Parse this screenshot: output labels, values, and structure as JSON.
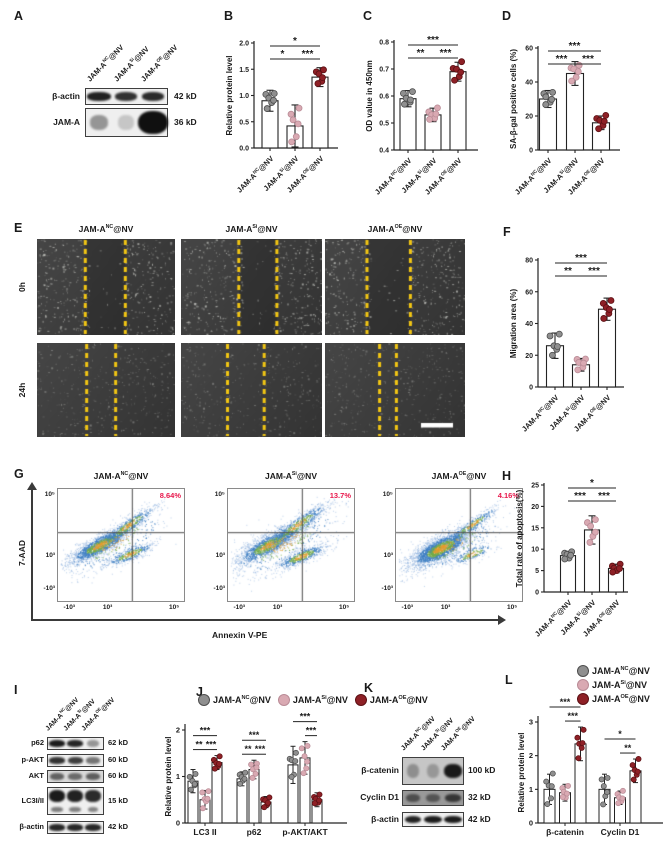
{
  "colors": {
    "nc_fill": "#8f8f8f",
    "nc_stroke": "#4d4d4d",
    "si_fill": "#d9a9b2",
    "si_stroke": "#b98b96",
    "oe_fill": "#8e2026",
    "oe_stroke": "#5c1014",
    "bar_stroke": "#232323",
    "percent_red": "#e8174b",
    "dash_yellow": "#f2c613",
    "axis_dark": "#3a3a3a"
  },
  "groups": [
    {
      "id": "nc",
      "base": "JAM-A",
      "sup": "NC",
      "suffix": "@NV"
    },
    {
      "id": "si",
      "base": "JAM-A",
      "sup": "Si",
      "suffix": "@NV"
    },
    {
      "id": "oe",
      "base": "JAM-A",
      "sup": "OE",
      "suffix": "@NV"
    }
  ],
  "panels": {
    "A": {
      "letter": "A",
      "rows": [
        {
          "label": "β-actin",
          "kd": "42 kD",
          "bands": [
            0.92,
            0.85,
            0.88
          ]
        },
        {
          "label": "JAM-A",
          "kd": "36 kD",
          "bands": [
            0.4,
            0.18,
            1.0
          ],
          "blob": true
        }
      ]
    },
    "B": {
      "letter": "B",
      "chart_data": {
        "type": "bar",
        "ylabel": "Relative protein level",
        "ylim": [
          0,
          2
        ],
        "yticks": [
          [
            0,
            "0.0"
          ],
          [
            0.5,
            "0.5"
          ],
          [
            1,
            "1.0"
          ],
          [
            1.5,
            "1.5"
          ],
          [
            2,
            "2.0"
          ]
        ],
        "values": [
          0.9,
          0.42,
          1.35
        ],
        "errors": [
          0.2,
          0.4,
          0.18
        ],
        "sig": [
          {
            "a": 0,
            "b": 1,
            "stars": "*",
            "level": 1
          },
          {
            "a": 1,
            "b": 2,
            "stars": "***",
            "level": 1
          },
          {
            "a": 0,
            "b": 2,
            "stars": "*",
            "level": 0
          }
        ]
      }
    },
    "C": {
      "letter": "C",
      "chart_data": {
        "type": "bar",
        "ylabel": "OD value in 450nm",
        "ylim": [
          0.4,
          0.8
        ],
        "yticks": [
          [
            0.4,
            "0.4"
          ],
          [
            0.5,
            "0.5"
          ],
          [
            0.6,
            "0.6"
          ],
          [
            0.7,
            "0.7"
          ],
          [
            0.8,
            "0.8"
          ]
        ],
        "values": [
          0.59,
          0.53,
          0.69
        ],
        "errors": [
          0.03,
          0.025,
          0.035
        ],
        "sig": [
          {
            "a": 0,
            "b": 1,
            "stars": "**",
            "level": 1
          },
          {
            "a": 1,
            "b": 2,
            "stars": "***",
            "level": 1
          },
          {
            "a": 0,
            "b": 2,
            "stars": "***",
            "level": 0
          }
        ]
      }
    },
    "D": {
      "letter": "D",
      "chart_data": {
        "type": "bar",
        "ylabel": "SA-β-gal positive cells (%)",
        "ylim": [
          0,
          60
        ],
        "yticks": [
          [
            0,
            "0"
          ],
          [
            20,
            "20"
          ],
          [
            40,
            "40"
          ],
          [
            60,
            "60"
          ]
        ],
        "values": [
          30,
          45,
          16
        ],
        "errors": [
          5,
          7,
          4
        ],
        "sig": [
          {
            "a": 0,
            "b": 1,
            "stars": "***",
            "level": 1
          },
          {
            "a": 1,
            "b": 2,
            "stars": "***",
            "level": 1
          },
          {
            "a": 0,
            "b": 2,
            "stars": "***",
            "level": 0
          }
        ]
      }
    },
    "E": {
      "letter": "E",
      "row_labels": [
        "0h",
        "24h"
      ],
      "images": [
        {
          "row": "0h",
          "gap": [
            0.35,
            0.64
          ]
        },
        {
          "row": "0h",
          "gap": [
            0.41,
            0.68
          ]
        },
        {
          "row": "0h",
          "gap": [
            0.3,
            0.61
          ]
        },
        {
          "row": "24h",
          "gap": [
            0.36,
            0.57
          ]
        },
        {
          "row": "24h",
          "gap": [
            0.33,
            0.59
          ]
        },
        {
          "row": "24h",
          "gap": [
            0.39,
            0.51
          ],
          "scalebar": true
        }
      ]
    },
    "F": {
      "letter": "F",
      "chart_data": {
        "type": "bar",
        "ylabel": "Migration area (%)",
        "ylim": [
          0,
          80
        ],
        "yticks": [
          [
            0,
            "0"
          ],
          [
            20,
            "20"
          ],
          [
            40,
            "40"
          ],
          [
            60,
            "60"
          ],
          [
            80,
            "80"
          ]
        ],
        "values": [
          26,
          14,
          49
        ],
        "errors": [
          8,
          4,
          7
        ],
        "sig": [
          {
            "a": 0,
            "b": 1,
            "stars": "**",
            "level": 1
          },
          {
            "a": 1,
            "b": 2,
            "stars": "***",
            "level": 1
          },
          {
            "a": 0,
            "b": 2,
            "stars": "***",
            "level": 0
          }
        ]
      }
    },
    "G": {
      "letter": "G",
      "ylabel": "7-AAD",
      "xlabel": "Annexin V-PE",
      "yticks": [
        "10⁵",
        "10³",
        "-10³"
      ],
      "xticks": [
        "-10³",
        "10³",
        "10⁵"
      ],
      "plots": [
        {
          "percent": "8.64%"
        },
        {
          "percent": "13.7%"
        },
        {
          "percent": "4.16%"
        }
      ]
    },
    "H": {
      "letter": "H",
      "chart_data": {
        "type": "bar",
        "ylabel": "Total rate of apoptosis(%)",
        "ylim": [
          0,
          25
        ],
        "yticks": [
          [
            0,
            "0"
          ],
          [
            5,
            "5"
          ],
          [
            10,
            "10"
          ],
          [
            15,
            "15"
          ],
          [
            20,
            "20"
          ],
          [
            25,
            "25"
          ]
        ],
        "values": [
          8.5,
          14.5,
          5.5
        ],
        "errors": [
          1,
          3.3,
          1
        ],
        "sig": [
          {
            "a": 0,
            "b": 1,
            "stars": "***",
            "level": 1
          },
          {
            "a": 1,
            "b": 2,
            "stars": "***",
            "level": 1
          },
          {
            "a": 0,
            "b": 2,
            "stars": "*",
            "level": 0
          }
        ]
      }
    },
    "I": {
      "letter": "I",
      "rows": [
        {
          "label": "p62",
          "kd": "62 kD",
          "bands": [
            0.95,
            0.9,
            0.4
          ]
        },
        {
          "label": "p-AKT",
          "kd": "60 kD",
          "bands": [
            0.85,
            0.8,
            0.55
          ]
        },
        {
          "label": "AKT",
          "kd": "60 kD",
          "bands": [
            0.6,
            0.55,
            0.62
          ],
          "bg": "#d9d9d9"
        },
        {
          "label": "LC3I/II",
          "kd": "15 kD",
          "bands": [
            0.95,
            0.92,
            0.88
          ],
          "double": true
        },
        {
          "label": "β-actin",
          "kd": "42 kD",
          "bands": [
            0.9,
            0.9,
            0.9
          ]
        }
      ]
    },
    "J": {
      "letter": "J",
      "chart_data": {
        "type": "grouped-bar",
        "ylabel": "Relative protein level",
        "ylim": [
          0,
          2
        ],
        "yticks": [
          [
            0,
            "0"
          ],
          [
            1,
            "1"
          ],
          [
            2,
            "2"
          ]
        ],
        "categories": [
          "LC3 II",
          "p62",
          "p-AKT/AKT"
        ],
        "series": [
          {
            "group": "nc",
            "values": [
              0.9,
              0.95,
              1.25
            ],
            "errors": [
              0.25,
              0.15,
              0.4
            ]
          },
          {
            "group": "si",
            "values": [
              0.5,
              1.15,
              1.4
            ],
            "errors": [
              0.2,
              0.2,
              0.35
            ]
          },
          {
            "group": "oe",
            "values": [
              1.3,
              0.45,
              0.5
            ],
            "errors": [
              0.15,
              0.12,
              0.15
            ]
          }
        ],
        "sig": [
          {
            "cat": 0,
            "a": 0,
            "b": 1,
            "stars": "**",
            "level": 1
          },
          {
            "cat": 0,
            "a": 1,
            "b": 2,
            "stars": "***",
            "level": 1
          },
          {
            "cat": 0,
            "a": 0,
            "b": 2,
            "stars": "***",
            "level": 0
          },
          {
            "cat": 1,
            "a": 0,
            "b": 1,
            "stars": "**",
            "level": 1
          },
          {
            "cat": 1,
            "a": 1,
            "b": 2,
            "stars": "***",
            "level": 1
          },
          {
            "cat": 1,
            "a": 0,
            "b": 2,
            "stars": "***",
            "level": 0
          },
          {
            "cat": 2,
            "a": 1,
            "b": 2,
            "stars": "***",
            "level": 1
          },
          {
            "cat": 2,
            "a": 0,
            "b": 2,
            "stars": "***",
            "level": 0
          }
        ]
      }
    },
    "K": {
      "letter": "K",
      "rows": [
        {
          "label": "β-catenin",
          "kd": "100 kD",
          "bands": [
            0.3,
            0.25,
            0.95
          ],
          "bg": "#c6c6c6"
        },
        {
          "label": "Cyclin D1",
          "kd": "32 kD",
          "bands": [
            0.55,
            0.5,
            0.72
          ],
          "bg": "#999999"
        },
        {
          "label": "β-actin",
          "kd": "42 kD",
          "bands": [
            0.92,
            0.95,
            0.95
          ],
          "bg": "#f0f0f0"
        }
      ]
    },
    "L": {
      "letter": "L",
      "chart_data": {
        "type": "grouped-bar",
        "ylabel": "Relative protein level",
        "ylim": [
          0,
          3
        ],
        "yticks": [
          [
            0,
            "0"
          ],
          [
            1,
            "1"
          ],
          [
            2,
            "2"
          ],
          [
            3,
            "3"
          ]
        ],
        "categories": [
          "β-catenin",
          "Cyclin D1"
        ],
        "series": [
          {
            "group": "nc",
            "values": [
              1.0,
              1.0
            ],
            "errors": [
              0.45,
              0.45
            ]
          },
          {
            "group": "si",
            "values": [
              0.9,
              0.75
            ],
            "errors": [
              0.25,
              0.2
            ]
          },
          {
            "group": "oe",
            "values": [
              2.35,
              1.55
            ],
            "errors": [
              0.5,
              0.35
            ]
          }
        ],
        "sig": [
          {
            "cat": 0,
            "a": 1,
            "b": 2,
            "stars": "***",
            "level": 1
          },
          {
            "cat": 0,
            "a": 0,
            "b": 2,
            "stars": "***",
            "level": 0
          },
          {
            "cat": 1,
            "a": 1,
            "b": 2,
            "stars": "**",
            "level": 1
          },
          {
            "cat": 1,
            "a": 0,
            "b": 2,
            "stars": "*",
            "level": 0
          }
        ]
      }
    }
  }
}
